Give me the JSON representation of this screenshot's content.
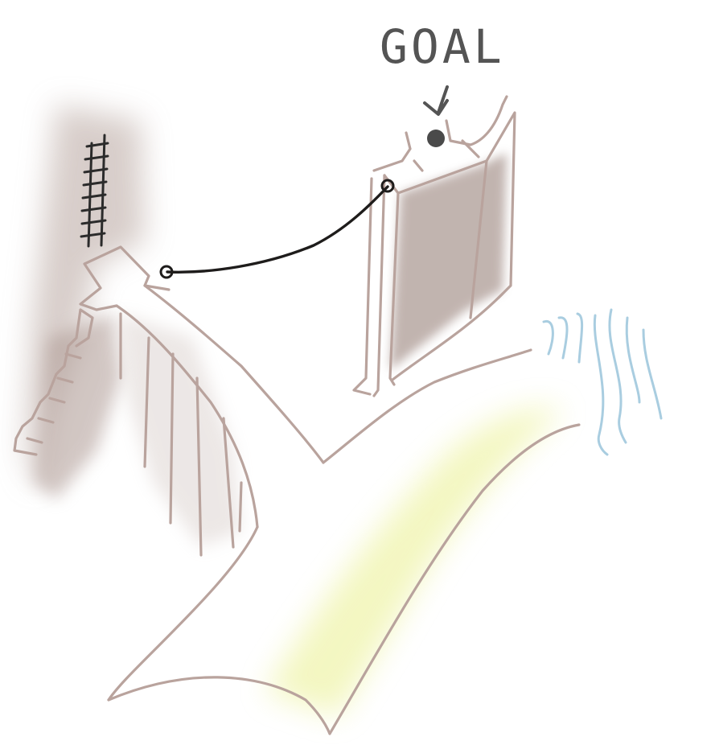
{
  "diagram": {
    "goal_label": "GOAL"
  },
  "colors": {
    "outline": "#b9a39d",
    "shadow": "#b2a19c",
    "path_highlight": "#e8ef8a",
    "rope": "#1e1c1b",
    "ladder": "#2b2b2b",
    "goal_marker": "#4a4a4a",
    "water": "#a9cde0"
  },
  "icons": {
    "ladder": "ladder-icon",
    "rope": "rope-line",
    "goal_marker": "goal-dot-icon",
    "goal_arrow": "arrow-down-icon",
    "water": "water-waves-icon"
  }
}
